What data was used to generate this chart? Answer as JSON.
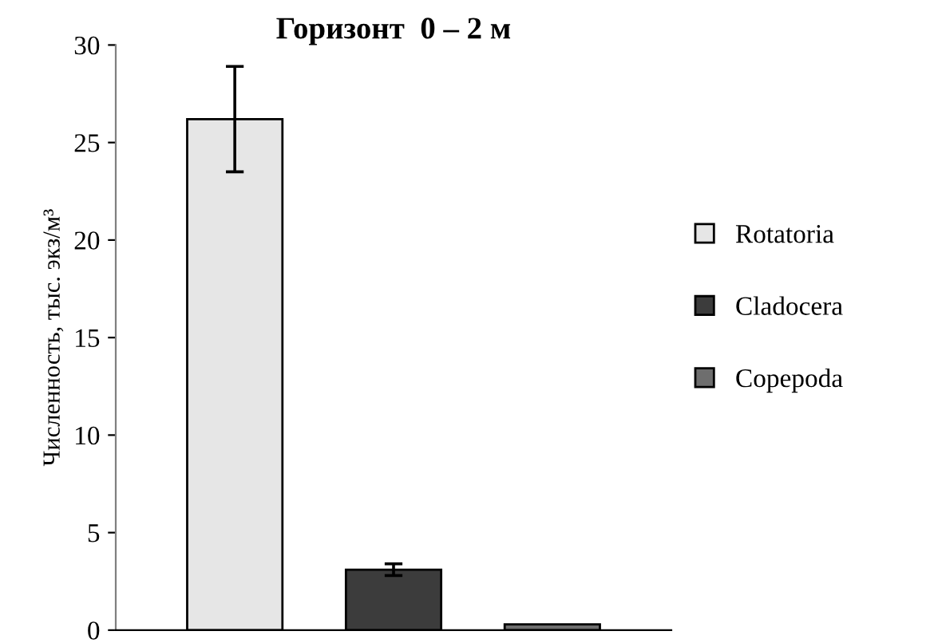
{
  "chart_data": {
    "type": "bar",
    "title": "Горизонт  0 – 2 м",
    "ylabel": "Численность, тыс. экз/м³",
    "categories": [
      null,
      null,
      null
    ],
    "series": [
      {
        "name": "Rotatoria",
        "color": "#e6e6e6",
        "values": [
          26.2,
          null,
          null
        ],
        "errors": [
          2.7,
          null,
          null
        ]
      },
      {
        "name": "Cladocera",
        "color": "#3c3c3c",
        "values": [
          null,
          3.1,
          null
        ],
        "errors": [
          null,
          0.3,
          null
        ]
      },
      {
        "name": "Copepoda",
        "color": "#6e6e6e",
        "values": [
          null,
          null,
          0.3
        ],
        "errors": [
          null,
          null,
          null
        ]
      }
    ],
    "ylim": [
      0,
      30
    ],
    "yticks": [
      0,
      5,
      10,
      15,
      20,
      25,
      30
    ],
    "grid": false,
    "legend": "right"
  }
}
